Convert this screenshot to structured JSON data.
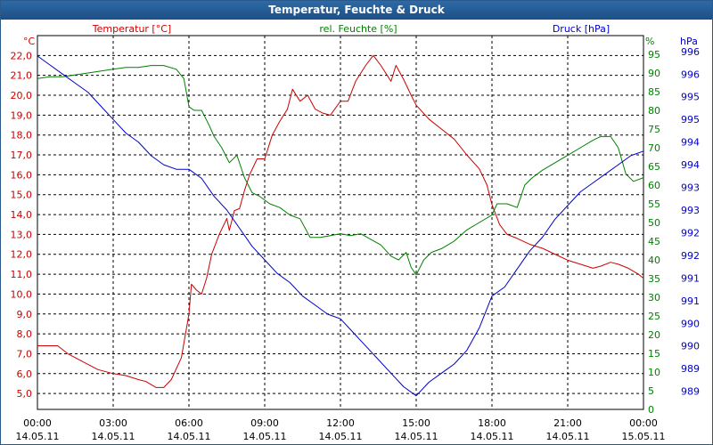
{
  "window": {
    "title": "Temperatur, Feuchte & Druck"
  },
  "colors": {
    "temp": "#cc0000",
    "hum": "#008000",
    "press": "#0000cc",
    "grid": "#000000",
    "axis": "#000000"
  },
  "chart_data": {
    "type": "line",
    "title": "Temperatur, Feuchte & Druck",
    "grid": true,
    "x_tick_labels": [
      {
        "time": "00:00",
        "date": "14.05.11"
      },
      {
        "time": "03:00",
        "date": "14.05.11"
      },
      {
        "time": "06:00",
        "date": "14.05.11"
      },
      {
        "time": "09:00",
        "date": "14.05.11"
      },
      {
        "time": "12:00",
        "date": "14.05.11"
      },
      {
        "time": "15:00",
        "date": "14.05.11"
      },
      {
        "time": "18:00",
        "date": "14.05.11"
      },
      {
        "time": "21:00",
        "date": "14.05.11"
      },
      {
        "time": "00:00",
        "date": "15.05.11"
      }
    ],
    "xlim": [
      0,
      24
    ],
    "axes": {
      "temp": {
        "label": "Temperatur [°C]",
        "unit": "°C",
        "min": 4.2,
        "max": 23.0,
        "ticks": [
          "5,0",
          "6,0",
          "7,0",
          "8,0",
          "9,0",
          "10,0",
          "11,0",
          "12,0",
          "13,0",
          "14,0",
          "15,0",
          "16,0",
          "17,0",
          "18,0",
          "19,0",
          "20,0",
          "21,0",
          "22,0"
        ]
      },
      "hum": {
        "label": "rel. Feuchte [%]",
        "unit": "%",
        "min": 0,
        "max": 100,
        "ticks": [
          "0",
          "5",
          "10",
          "15",
          "20",
          "25",
          "30",
          "35",
          "40",
          "45",
          "50",
          "55",
          "60",
          "65",
          "70",
          "75",
          "80",
          "85",
          "90",
          "95"
        ]
      },
      "press": {
        "label": "Druck [hPa]",
        "unit": "hPa",
        "min": 988.6,
        "max": 996.85,
        "ticks": [
          "989",
          "989",
          "990",
          "990",
          "991",
          "991",
          "992",
          "992",
          "993",
          "993",
          "994",
          "994",
          "995",
          "995",
          "996",
          "996"
        ]
      }
    },
    "series": [
      {
        "name": "Temperatur [°C]",
        "axis": "temp",
        "color": "#cc0000",
        "x": [
          0,
          0.3,
          0.8,
          1.2,
          1.8,
          2.4,
          3.0,
          3.5,
          4.0,
          4.3,
          4.7,
          5.0,
          5.3,
          5.7,
          6.0,
          6.1,
          6.3,
          6.5,
          6.7,
          6.9,
          7.2,
          7.5,
          7.6,
          7.8,
          8.0,
          8.2,
          8.4,
          8.7,
          9.0,
          9.3,
          9.6,
          9.9,
          10.1,
          10.4,
          10.7,
          11.0,
          11.3,
          11.6,
          12.0,
          12.3,
          12.6,
          13.0,
          13.3,
          13.6,
          14.0,
          14.2,
          14.5,
          14.8,
          15.0,
          15.5,
          16.0,
          16.5,
          17.0,
          17.5,
          17.8,
          18.0,
          18.3,
          18.6,
          19.0,
          19.5,
          20.0,
          21.0,
          21.5,
          22.0,
          22.3,
          22.7,
          23.0,
          23.4,
          23.8,
          24.0
        ],
        "y": [
          7.4,
          7.4,
          7.4,
          7.0,
          6.6,
          6.2,
          6.0,
          5.9,
          5.7,
          5.6,
          5.3,
          5.3,
          5.7,
          6.8,
          9.0,
          10.5,
          10.2,
          10.0,
          10.8,
          12.0,
          13.0,
          13.8,
          13.2,
          14.2,
          14.3,
          15.2,
          16.0,
          16.8,
          16.8,
          18.0,
          18.7,
          19.3,
          20.3,
          19.7,
          20.0,
          19.3,
          19.1,
          19.0,
          19.7,
          19.7,
          20.7,
          21.5,
          22.0,
          21.5,
          20.7,
          21.5,
          20.8,
          20.0,
          19.5,
          18.8,
          18.3,
          17.8,
          17.0,
          16.3,
          15.5,
          14.5,
          13.5,
          13.0,
          12.8,
          12.5,
          12.3,
          11.7,
          11.5,
          11.3,
          11.4,
          11.6,
          11.5,
          11.3,
          11.0,
          10.8
        ]
      },
      {
        "name": "rel. Feuchte [%]",
        "axis": "hum",
        "color": "#008000",
        "x": [
          0,
          0.5,
          1.0,
          1.5,
          2.0,
          2.5,
          3.0,
          3.5,
          4.0,
          4.5,
          5.0,
          5.5,
          5.8,
          6.0,
          6.2,
          6.5,
          6.8,
          7.0,
          7.3,
          7.6,
          7.9,
          8.2,
          8.5,
          8.8,
          9.2,
          9.6,
          10.0,
          10.4,
          10.8,
          11.2,
          11.6,
          12.0,
          12.4,
          12.8,
          13.2,
          13.6,
          14.0,
          14.3,
          14.6,
          14.8,
          15.0,
          15.3,
          15.6,
          16.0,
          16.5,
          17.0,
          17.5,
          18.0,
          18.2,
          18.6,
          19.0,
          19.3,
          19.6,
          20.0,
          20.5,
          21.0,
          21.5,
          22.0,
          22.3,
          22.7,
          23.0,
          23.3,
          23.6,
          24.0
        ],
        "y": [
          88.5,
          89,
          89,
          89.5,
          90,
          90.5,
          91,
          91.5,
          91.5,
          92,
          92,
          91,
          88.5,
          81,
          80,
          80,
          76,
          73,
          70,
          66,
          68,
          62,
          58,
          57,
          55,
          54,
          52,
          51,
          46,
          46,
          46.5,
          47,
          46.5,
          47,
          45.5,
          44,
          41,
          40,
          42,
          38,
          36,
          40,
          42,
          43,
          45,
          48,
          50,
          52,
          55,
          55,
          54,
          60,
          62,
          64,
          66,
          68,
          70,
          72,
          73,
          73,
          70,
          63,
          61,
          62
        ]
      },
      {
        "name": "Druck [hPa]",
        "axis": "press",
        "color": "#0000cc",
        "x": [
          0,
          0.5,
          1.0,
          1.5,
          2.0,
          2.5,
          3.0,
          3.5,
          4.0,
          4.5,
          5.0,
          5.5,
          6.0,
          6.5,
          7.0,
          7.5,
          8.0,
          8.5,
          9.0,
          9.5,
          10.0,
          10.5,
          11.0,
          11.5,
          12.0,
          12.5,
          13.0,
          13.5,
          14.0,
          14.5,
          15.0,
          15.5,
          16.0,
          16.5,
          17.0,
          17.5,
          18.0,
          18.5,
          19.0,
          19.5,
          20.0,
          20.5,
          21.0,
          21.5,
          22.0,
          22.5,
          23.0,
          23.5,
          24.0
        ],
        "y": [
          996.4,
          996.2,
          996.0,
          995.8,
          995.6,
          995.3,
          995.0,
          994.7,
          994.5,
          994.2,
          994.0,
          993.9,
          993.9,
          993.7,
          993.3,
          993.0,
          992.6,
          992.2,
          991.9,
          991.6,
          991.4,
          991.1,
          990.9,
          990.7,
          990.6,
          990.3,
          990.0,
          989.7,
          989.4,
          989.1,
          988.9,
          989.2,
          989.4,
          989.6,
          989.9,
          990.4,
          991.1,
          991.3,
          991.7,
          992.1,
          992.4,
          992.8,
          993.1,
          993.4,
          993.6,
          993.8,
          994.0,
          994.2,
          994.3
        ]
      }
    ]
  }
}
